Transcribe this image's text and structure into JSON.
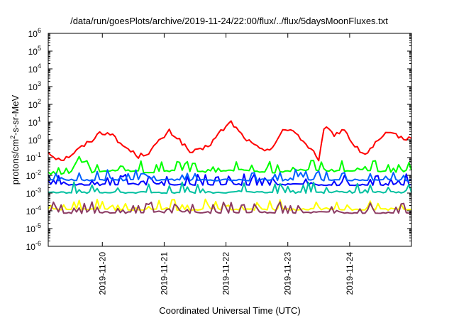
{
  "chart_data": {
    "type": "line",
    "title": "/data/run/goesPlots/archive/2019-11-24/22:00/flux/../flux/5daysMoonFluxes.txt",
    "xlabel": "Coordinated Universal Time (UTC)",
    "ylabel": {
      "pre": "protons/cm",
      "sup": "2",
      "post": "-s-sr-MeV"
    },
    "yscale": "log",
    "ylim": [
      1e-06,
      1000000.0
    ],
    "xlim": [
      "2019-11-19 03:00",
      "2019-11-24 23:59"
    ],
    "x_ticks": [
      "2019-11-20",
      "2019-11-21",
      "2019-11-22",
      "2019-11-23",
      "2019-11-24"
    ],
    "y_ticks": [
      {
        "base": "10",
        "exp": "-6"
      },
      {
        "base": "10",
        "exp": "-5"
      },
      {
        "base": "10",
        "exp": "-4"
      },
      {
        "base": "10",
        "exp": "-3"
      },
      {
        "base": "10",
        "exp": "-2"
      },
      {
        "base": "10",
        "exp": "-1"
      },
      {
        "base": "10",
        "exp": "0"
      },
      {
        "base": "10",
        "exp": "1"
      },
      {
        "base": "10",
        "exp": "2"
      },
      {
        "base": "10",
        "exp": "3"
      },
      {
        "base": "10",
        "exp": "4"
      },
      {
        "base": "10",
        "exp": "5"
      },
      {
        "base": "10",
        "exp": "6"
      }
    ],
    "grid": false,
    "legend": "none",
    "series": [
      {
        "color": "#ff0000",
        "points": [
          [
            "2019-11-19 03:00",
            0.2
          ],
          [
            "2019-11-19 06:00",
            0.1
          ],
          [
            "2019-11-19 09:00",
            0.08
          ],
          [
            "2019-11-19 12:00",
            0.15
          ],
          [
            "2019-11-19 16:00",
            0.4
          ],
          [
            "2019-11-19 20:00",
            1.0
          ],
          [
            "2019-11-19 23:00",
            2.5
          ],
          [
            "2019-11-20 03:00",
            2.5
          ],
          [
            "2019-11-20 06:00",
            0.8
          ],
          [
            "2019-11-20 10:00",
            0.3
          ],
          [
            "2019-11-20 14:00",
            0.12
          ],
          [
            "2019-11-20 18:00",
            0.2
          ],
          [
            "2019-11-20 22:00",
            0.8
          ],
          [
            "2019-11-21 02:00",
            3.0
          ],
          [
            "2019-11-21 06:00",
            1.0
          ],
          [
            "2019-11-21 10:00",
            0.2
          ],
          [
            "2019-11-21 14:00",
            0.25
          ],
          [
            "2019-11-21 18:00",
            0.6
          ],
          [
            "2019-11-21 22:00",
            3.0
          ],
          [
            "2019-11-22 02:00",
            10.0
          ],
          [
            "2019-11-22 06:00",
            2.0
          ],
          [
            "2019-11-22 10:00",
            0.6
          ],
          [
            "2019-11-22 14:00",
            0.25
          ],
          [
            "2019-11-22 18:00",
            0.4
          ],
          [
            "2019-11-22 22:00",
            3.0
          ],
          [
            "2019-11-23 02:00",
            4.0
          ],
          [
            "2019-11-23 06:00",
            0.8
          ],
          [
            "2019-11-23 10:00",
            0.2
          ],
          [
            "2019-11-23 12:00",
            0.05
          ],
          [
            "2019-11-23 14:00",
            5.0
          ],
          [
            "2019-11-23 18:00",
            2.0
          ],
          [
            "2019-11-23 22:00",
            4.0
          ],
          [
            "2019-11-24 02:00",
            0.4
          ],
          [
            "2019-11-24 06:00",
            0.15
          ],
          [
            "2019-11-24 10:00",
            0.6
          ],
          [
            "2019-11-24 14:00",
            2.0
          ],
          [
            "2019-11-24 18:00",
            2.0
          ],
          [
            "2019-11-24 22:00",
            1.0
          ],
          [
            "2019-11-24 23:59",
            1.2
          ]
        ]
      },
      {
        "color": "#00ff00",
        "points": [
          [
            "2019-11-19 03:00",
            0.01
          ],
          [
            "2019-11-19 12:00",
            0.015
          ],
          [
            "2019-11-19 14:00",
            0.06
          ],
          [
            "2019-11-19 18:00",
            0.06
          ],
          [
            "2019-11-19 20:00",
            0.015
          ],
          [
            "2019-11-20 06:00",
            0.02
          ],
          [
            "2019-11-20 18:00",
            0.015
          ],
          [
            "2019-11-21 06:00",
            0.02
          ],
          [
            "2019-11-21 18:00",
            0.015
          ],
          [
            "2019-11-22 06:00",
            0.02
          ],
          [
            "2019-11-22 18:00",
            0.015
          ],
          [
            "2019-11-23 06:00",
            0.02
          ],
          [
            "2019-11-23 18:00",
            0.018
          ],
          [
            "2019-11-24 06:00",
            0.02
          ],
          [
            "2019-11-24 18:00",
            0.015
          ],
          [
            "2019-11-24 23:59",
            0.02
          ]
        ]
      },
      {
        "color": "#0000ff",
        "points": [
          [
            "2019-11-19 03:00",
            0.003
          ],
          [
            "2019-11-20 00:00",
            0.003
          ],
          [
            "2019-11-21 00:00",
            0.003
          ],
          [
            "2019-11-22 00:00",
            0.003
          ],
          [
            "2019-11-23 00:00",
            0.003
          ],
          [
            "2019-11-24 00:00",
            0.003
          ],
          [
            "2019-11-24 23:59",
            0.003
          ]
        ]
      },
      {
        "color": "#0060ff",
        "points": [
          [
            "2019-11-19 03:00",
            0.0055
          ],
          [
            "2019-11-20 00:00",
            0.0055
          ],
          [
            "2019-11-21 00:00",
            0.0055
          ],
          [
            "2019-11-22 00:00",
            0.0055
          ],
          [
            "2019-11-23 00:00",
            0.0055
          ],
          [
            "2019-11-24 00:00",
            0.0055
          ],
          [
            "2019-11-24 23:59",
            0.0055
          ]
        ]
      },
      {
        "color": "#00c0a0",
        "points": [
          [
            "2019-11-19 03:00",
            0.0011
          ],
          [
            "2019-11-20 00:00",
            0.0011
          ],
          [
            "2019-11-21 00:00",
            0.0011
          ],
          [
            "2019-11-22 00:00",
            0.0011
          ],
          [
            "2019-11-23 00:00",
            0.0011
          ],
          [
            "2019-11-24 00:00",
            0.0011
          ],
          [
            "2019-11-24 23:59",
            0.0011
          ]
        ]
      },
      {
        "color": "#ffff00",
        "points": [
          [
            "2019-11-19 03:00",
            0.00012
          ],
          [
            "2019-11-20 00:00",
            0.00012
          ],
          [
            "2019-11-21 00:00",
            0.00012
          ],
          [
            "2019-11-22 00:00",
            0.00012
          ],
          [
            "2019-11-23 00:00",
            0.00012
          ],
          [
            "2019-11-24 00:00",
            0.00012
          ],
          [
            "2019-11-24 23:59",
            0.00012
          ]
        ]
      },
      {
        "color": "#8b3a62",
        "points": [
          [
            "2019-11-19 03:00",
            8e-05
          ],
          [
            "2019-11-20 00:00",
            8e-05
          ],
          [
            "2019-11-21 00:00",
            8e-05
          ],
          [
            "2019-11-22 00:00",
            8e-05
          ],
          [
            "2019-11-23 00:00",
            8e-05
          ],
          [
            "2019-11-24 00:00",
            8e-05
          ],
          [
            "2019-11-24 23:59",
            8e-05
          ]
        ]
      }
    ]
  }
}
